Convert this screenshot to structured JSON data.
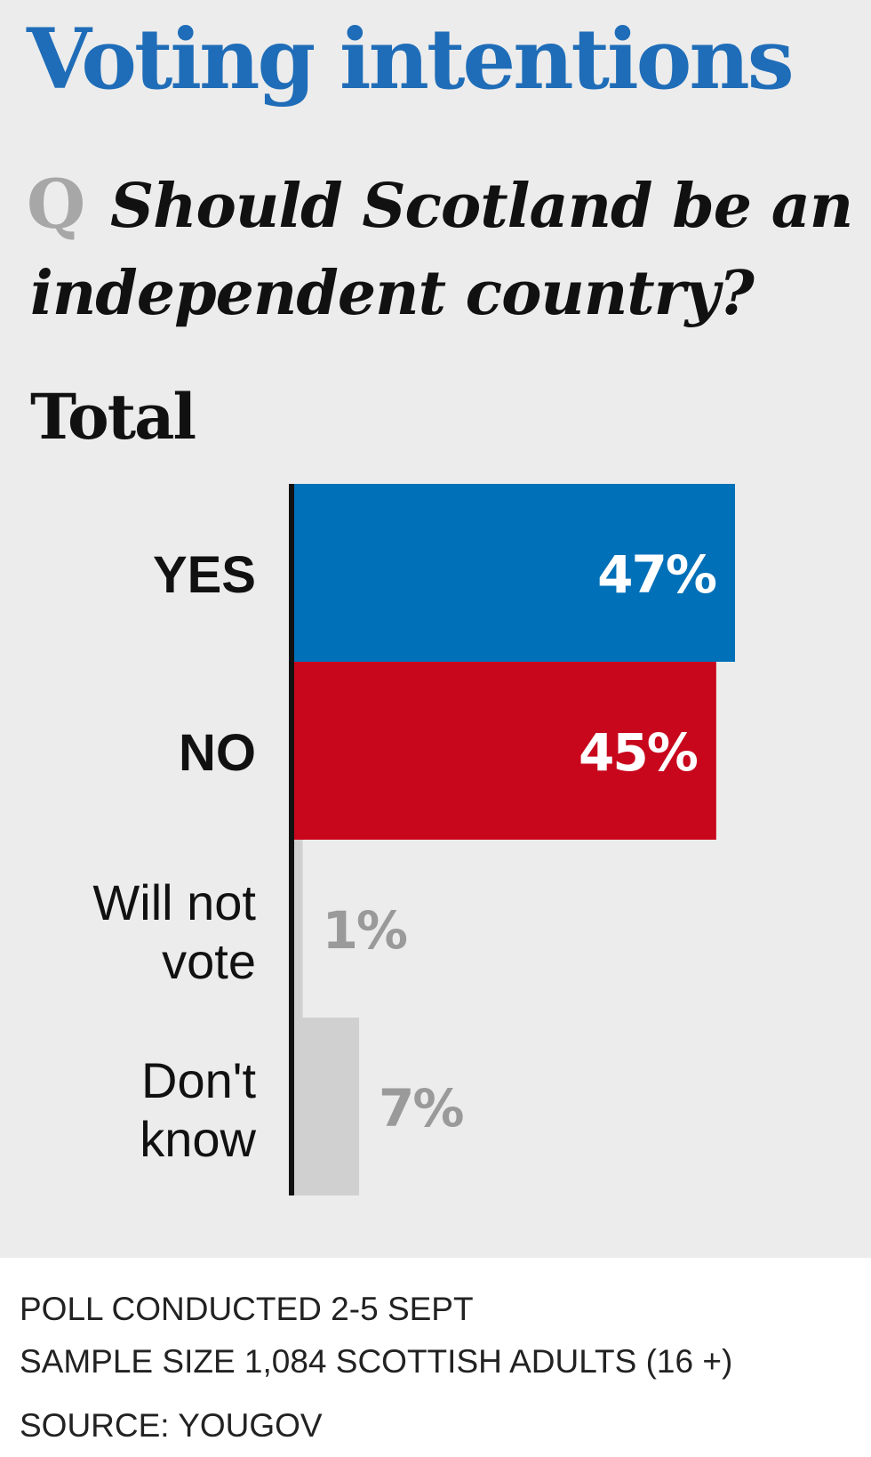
{
  "chart_data": {
    "type": "bar",
    "orientation": "horizontal",
    "title": "Voting intentions",
    "question": {
      "mark": "Q",
      "line1": "Should Scotland be an",
      "line2": "independent country?"
    },
    "subtitle": "Total",
    "categories": [
      [
        "YES"
      ],
      [
        "NO"
      ],
      [
        "Will not",
        "vote"
      ],
      [
        "Don't",
        "know"
      ]
    ],
    "values": [
      47,
      45,
      1,
      7
    ],
    "value_labels": [
      "47%",
      "45%",
      "1%",
      "7%"
    ],
    "bar_colors": [
      "#0070b8",
      "#c8071c",
      "#d0d0d0",
      "#d0d0d0"
    ],
    "label_colors": [
      "#ffffff",
      "#ffffff",
      "#9a9a9a",
      "#9a9a9a"
    ],
    "xlim": [
      0,
      47
    ],
    "grid": false,
    "legend": "none"
  },
  "footnotes": {
    "poll_line": "POLL CONDUCTED 2-5 SEPT",
    "sample_line": "SAMPLE SIZE 1,084 SCOTTISH ADULTS (16 +)",
    "source_line": "SOURCE: YOUGOV"
  },
  "colors": {
    "background": "#ececec",
    "title": "#1f6db8",
    "axis": "#111111"
  }
}
